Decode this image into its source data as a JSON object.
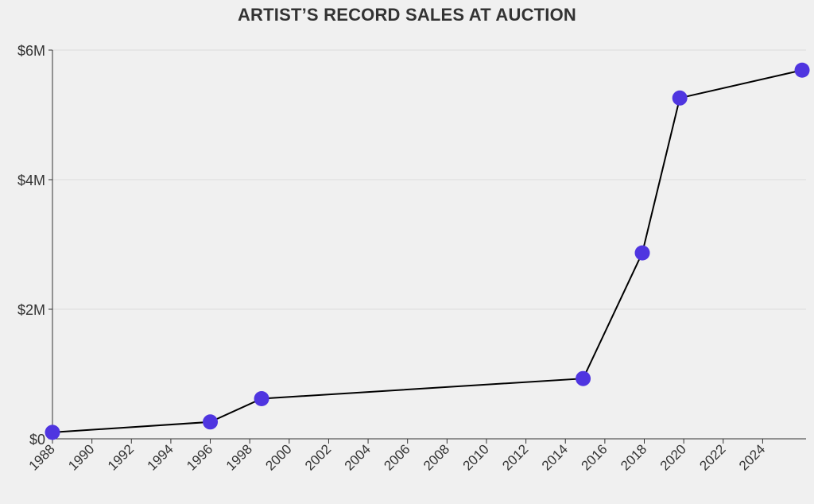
{
  "colors": {
    "background": "#f0f0f0",
    "line": "#000000",
    "marker": "#4f35e0",
    "grid": "#dddddd",
    "text": "#333333"
  },
  "chart_data": {
    "type": "line",
    "title": "ARTIST’S RECORD SALES AT AUCTION",
    "xlabel": "",
    "ylabel": "",
    "xlim": [
      1988,
      2026.2
    ],
    "ylim": [
      0,
      6000000
    ],
    "x_ticks": [
      1988,
      1990,
      1992,
      1994,
      1996,
      1998,
      2000,
      2002,
      2004,
      2006,
      2008,
      2010,
      2012,
      2014,
      2016,
      2018,
      2020,
      2022,
      2024
    ],
    "x_tick_labels": [
      "1988",
      "1990",
      "1992",
      "1994",
      "1996",
      "1998",
      "2000",
      "2002",
      "2004",
      "2006",
      "2008",
      "2010",
      "2012",
      "2014",
      "2016",
      "2018",
      "2020",
      "2022",
      "2024"
    ],
    "y_ticks": [
      0,
      2000000,
      4000000,
      6000000
    ],
    "y_tick_labels": [
      "$0",
      "$2M",
      "$4M",
      "$6M"
    ],
    "grid": true,
    "series": [
      {
        "x": [
          1988.0,
          1996.0,
          1998.6,
          2014.9,
          2017.9,
          2019.8,
          2026.0
        ],
        "y": [
          100000,
          260000,
          620000,
          930000,
          2870000,
          5260000,
          5690000
        ]
      }
    ]
  }
}
